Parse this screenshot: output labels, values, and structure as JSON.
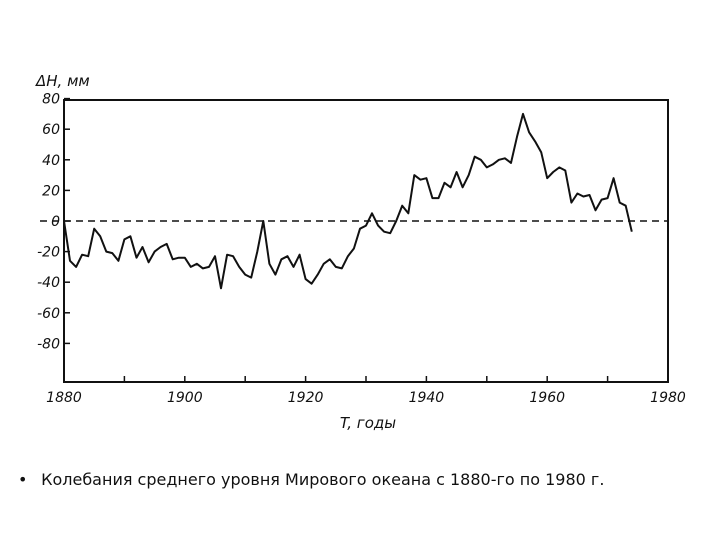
{
  "chart_data": {
    "type": "line",
    "ylabel": "ΔH, мм",
    "xlabel": "T, годы",
    "xlim": [
      1880,
      1980
    ],
    "ylim": [
      -80,
      80
    ],
    "x_ticks": [
      "1880",
      "1900",
      "1920",
      "1940",
      "1960",
      "1980"
    ],
    "y_ticks": [
      "80",
      "60",
      "40",
      "20",
      "0",
      "-20",
      "-40",
      "-60",
      "-80"
    ],
    "grid": false,
    "zero_line": "dashed",
    "series": [
      {
        "x": [
          1880,
          1881,
          1882,
          1883,
          1884,
          1885,
          1886,
          1887,
          1888,
          1889,
          1890,
          1891,
          1892,
          1893,
          1894,
          1895,
          1896,
          1897,
          1898,
          1899,
          1900,
          1901,
          1902,
          1903,
          1904,
          1905,
          1906,
          1907,
          1908,
          1909,
          1910,
          1911,
          1912,
          1913,
          1914,
          1915,
          1916,
          1917,
          1918,
          1919,
          1920,
          1921,
          1922,
          1923,
          1924,
          1925,
          1926,
          1927,
          1928,
          1929,
          1930,
          1931,
          1932,
          1933,
          1934,
          1935,
          1936,
          1937,
          1938,
          1939,
          1940,
          1941,
          1942,
          1943,
          1944,
          1945,
          1946,
          1947,
          1948,
          1949,
          1950,
          1951,
          1952,
          1953,
          1954,
          1955,
          1956,
          1957,
          1958,
          1959,
          1960,
          1961,
          1962,
          1963,
          1964,
          1965,
          1966,
          1967,
          1968,
          1969,
          1970,
          1971,
          1972,
          1973,
          1974
        ],
        "y": [
          0,
          -26,
          -30,
          -22,
          -23,
          -5,
          -10,
          -20,
          -21,
          -26,
          -12,
          -10,
          -24,
          -17,
          -27,
          -20,
          -17,
          -15,
          -25,
          -24,
          -24,
          -30,
          -28,
          -31,
          -30,
          -23,
          -44,
          -22,
          -23,
          -30,
          -35,
          -37,
          -20,
          0,
          -28,
          -35,
          -25,
          -23,
          -30,
          -22,
          -38,
          -41,
          -35,
          -28,
          -25,
          -30,
          -31,
          -23,
          -18,
          -5,
          -3,
          5,
          -3,
          -7,
          -8,
          0,
          10,
          5,
          30,
          27,
          28,
          15,
          15,
          25,
          22,
          32,
          22,
          30,
          42,
          40,
          35,
          37,
          40,
          41,
          38,
          55,
          70,
          58,
          52,
          45,
          28,
          32,
          35,
          33,
          12,
          18,
          16,
          17,
          7,
          14,
          15,
          28,
          12,
          10,
          -7
        ]
      }
    ]
  },
  "caption": {
    "bullet": "•",
    "text": "Колебания среднего уровня Мирового океана с 1880-го по 1980 г."
  }
}
